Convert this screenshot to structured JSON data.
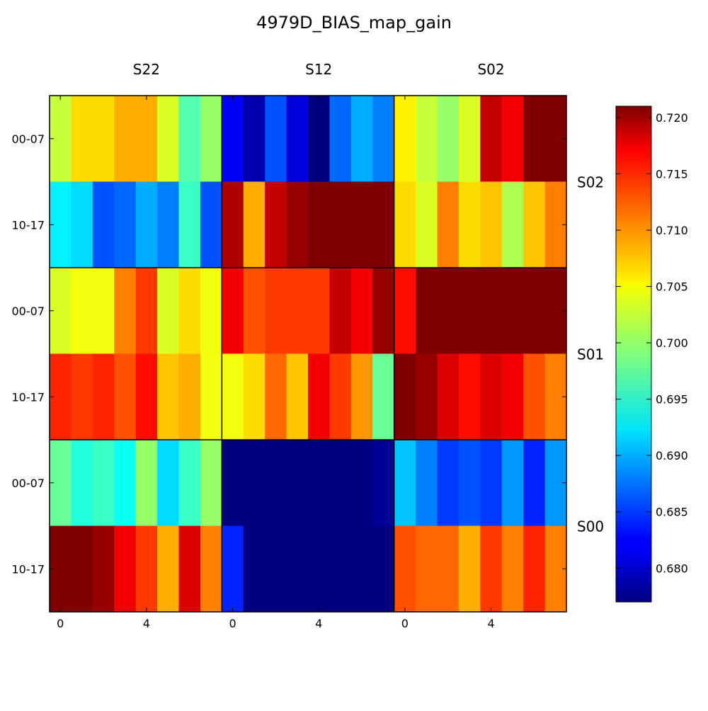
{
  "chart_data": {
    "type": "heatmap",
    "title": "4979D_BIAS_map_gain",
    "colormap": "jet",
    "vmin": 0.677,
    "vmax": 0.721,
    "column_groups": [
      "S22",
      "S12",
      "S02"
    ],
    "row_groups": [
      "S02",
      "S01",
      "S00"
    ],
    "row_labels": [
      "00-07",
      "10-17"
    ],
    "x_tick_labels": [
      "0",
      "4"
    ],
    "x_tick_values": [
      0,
      4
    ],
    "colorbar_ticks": [
      0.68,
      0.685,
      0.69,
      0.695,
      0.7,
      0.705,
      0.71,
      0.715,
      0.72
    ],
    "colorbar_tick_labels": [
      "0.680",
      "0.685",
      "0.690",
      "0.695",
      "0.700",
      "0.705",
      "0.710",
      "0.715",
      "0.720"
    ],
    "values": [
      [
        0.702,
        0.706,
        0.706,
        0.708,
        0.708,
        0.703,
        0.697,
        0.7,
        0.682,
        0.679,
        0.686,
        0.681,
        0.677,
        0.687,
        0.69,
        0.688,
        0.705,
        0.702,
        0.7,
        0.703,
        0.718,
        0.716,
        0.721,
        0.721
      ],
      [
        0.693,
        0.692,
        0.686,
        0.687,
        0.69,
        0.688,
        0.696,
        0.686,
        0.719,
        0.708,
        0.718,
        0.72,
        0.721,
        0.721,
        0.721,
        0.721,
        0.706,
        0.703,
        0.71,
        0.706,
        0.707,
        0.701,
        0.707,
        0.71
      ],
      [
        0.703,
        0.704,
        0.704,
        0.71,
        0.713,
        0.703,
        0.706,
        0.704,
        0.716,
        0.712,
        0.713,
        0.713,
        0.713,
        0.718,
        0.716,
        0.72,
        0.715,
        0.721,
        0.721,
        0.721,
        0.721,
        0.721,
        0.721,
        0.721
      ],
      [
        0.714,
        0.713,
        0.714,
        0.712,
        0.715,
        0.707,
        0.708,
        0.704,
        0.704,
        0.706,
        0.711,
        0.707,
        0.716,
        0.713,
        0.709,
        0.698,
        0.721,
        0.72,
        0.717,
        0.715,
        0.717,
        0.716,
        0.712,
        0.71
      ],
      [
        0.698,
        0.695,
        0.696,
        0.694,
        0.7,
        0.692,
        0.696,
        0.7,
        0.677,
        0.677,
        0.677,
        0.677,
        0.677,
        0.677,
        0.677,
        0.678,
        0.691,
        0.688,
        0.685,
        0.686,
        0.685,
        0.689,
        0.684,
        0.689
      ],
      [
        0.721,
        0.721,
        0.72,
        0.716,
        0.713,
        0.708,
        0.717,
        0.71,
        0.684,
        0.677,
        0.677,
        0.677,
        0.677,
        0.677,
        0.677,
        0.677,
        0.712,
        0.711,
        0.711,
        0.708,
        0.713,
        0.71,
        0.714,
        0.71
      ]
    ]
  }
}
